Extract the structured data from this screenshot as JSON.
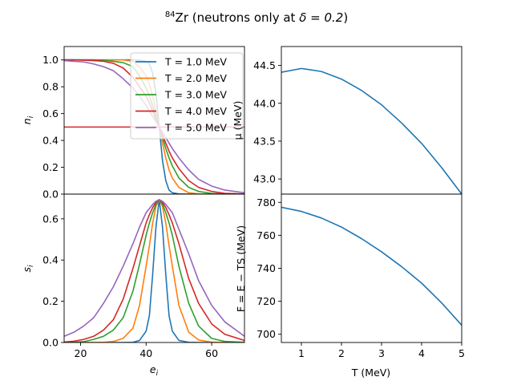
{
  "title_prefix": "84",
  "title_body": "Zr (neutrons only at ",
  "title_math": "δ = 0.2",
  "title_suffix": ")",
  "chart_data": [
    {
      "type": "line",
      "panel": "occupation",
      "xlabel": "",
      "ylabel": "n_i",
      "xlim": [
        15,
        70
      ],
      "ylim": [
        0,
        1.1
      ],
      "yticks": [
        "0.0",
        "0.2",
        "0.4",
        "0.6",
        "0.8",
        "1.0"
      ],
      "ytick_values": [
        0,
        0.2,
        0.4,
        0.6,
        0.8,
        1.0
      ],
      "legend_position": "upper right",
      "x": [
        15,
        18,
        21,
        24,
        27,
        30,
        33,
        36,
        38,
        40,
        41,
        42,
        43,
        44,
        45,
        46,
        47,
        48,
        50,
        53,
        56,
        60,
        64,
        70
      ],
      "series": [
        {
          "name": "T = 1.0 MeV",
          "color": "#1f77b4",
          "values": [
            1.0,
            1.0,
            1.0,
            1.0,
            1.0,
            1.0,
            1.0,
            1.0,
            0.998,
            0.99,
            0.97,
            0.9,
            0.75,
            0.5,
            0.25,
            0.1,
            0.03,
            0.01,
            0.001,
            0,
            0,
            0,
            0,
            0
          ]
        },
        {
          "name": "T = 2.0 MeV",
          "color": "#ff7f0e",
          "values": [
            1.0,
            1.0,
            1.0,
            1.0,
            1.0,
            1.0,
            1.0,
            0.99,
            0.95,
            0.88,
            0.82,
            0.73,
            0.62,
            0.5,
            0.38,
            0.27,
            0.18,
            0.12,
            0.05,
            0.01,
            0.002,
            0,
            0,
            0
          ]
        },
        {
          "name": "T = 3.0 MeV",
          "color": "#2ca02c",
          "values": [
            1.0,
            1.0,
            1.0,
            1.0,
            0.998,
            0.99,
            0.98,
            0.95,
            0.88,
            0.79,
            0.73,
            0.66,
            0.58,
            0.5,
            0.42,
            0.34,
            0.27,
            0.21,
            0.12,
            0.05,
            0.02,
            0.005,
            0.001,
            0
          ]
        },
        {
          "name": "T = 4.0 MeV",
          "color": "#d62728",
          "values": [
            1.0,
            1.0,
            0.998,
            0.995,
            0.99,
            0.975,
            0.94,
            0.87,
            0.8,
            0.73,
            0.68,
            0.62,
            0.56,
            0.5,
            0.44,
            0.38,
            0.32,
            0.27,
            0.19,
            0.1,
            0.05,
            0.02,
            0.006,
            0.001
          ]
        },
        {
          "name": "T = 4.0 MeV",
          "color": "#d62728",
          "flat": 0.5,
          "values": [
            0.5,
            0.5,
            0.5,
            0.5,
            0.5,
            0.5,
            0.5,
            0.5,
            0.5,
            0.5,
            0.5,
            0.5,
            0.5,
            0.5,
            0.5,
            0.5,
            0.5,
            0.5,
            0.5,
            0.5,
            0.5,
            0.5,
            0.5,
            0.5
          ]
        },
        {
          "name": "T = 5.0 MeV",
          "color": "#9467bd",
          "values": [
            0.995,
            0.99,
            0.985,
            0.97,
            0.95,
            0.92,
            0.86,
            0.79,
            0.73,
            0.66,
            0.62,
            0.58,
            0.54,
            0.5,
            0.46,
            0.42,
            0.38,
            0.34,
            0.27,
            0.18,
            0.11,
            0.06,
            0.03,
            0.01
          ]
        }
      ]
    },
    {
      "type": "line",
      "panel": "entropy",
      "xlabel": "e_i",
      "ylabel": "s_i",
      "xlim": [
        15,
        70
      ],
      "ylim": [
        0,
        0.72
      ],
      "xticks": [
        "20",
        "40",
        "60"
      ],
      "xtick_values": [
        20,
        40,
        60
      ],
      "yticks": [
        "0.0",
        "0.2",
        "0.4",
        "0.6"
      ],
      "ytick_values": [
        0,
        0.2,
        0.4,
        0.6
      ],
      "x": [
        15,
        18,
        21,
        24,
        27,
        30,
        33,
        36,
        38,
        40,
        41,
        42,
        43,
        44,
        45,
        46,
        47,
        48,
        50,
        53,
        56,
        60,
        64,
        70
      ],
      "series": [
        {
          "name": "T = 1.0 MeV",
          "color": "#1f77b4",
          "values": [
            0,
            0,
            0,
            0,
            0,
            0,
            0,
            0.001,
            0.01,
            0.055,
            0.13,
            0.33,
            0.56,
            0.693,
            0.56,
            0.33,
            0.13,
            0.055,
            0.01,
            0.001,
            0,
            0,
            0,
            0
          ]
        },
        {
          "name": "T = 2.0 MeV",
          "color": "#ff7f0e",
          "values": [
            0,
            0,
            0,
            0,
            0.001,
            0.005,
            0.02,
            0.07,
            0.18,
            0.37,
            0.47,
            0.58,
            0.66,
            0.693,
            0.66,
            0.58,
            0.47,
            0.37,
            0.18,
            0.05,
            0.012,
            0.002,
            0,
            0
          ]
        },
        {
          "name": "T = 3.0 MeV",
          "color": "#2ca02c",
          "values": [
            0,
            0.001,
            0.004,
            0.015,
            0.03,
            0.06,
            0.12,
            0.25,
            0.38,
            0.52,
            0.58,
            0.63,
            0.67,
            0.693,
            0.67,
            0.63,
            0.58,
            0.52,
            0.37,
            0.19,
            0.08,
            0.02,
            0.005,
            0.001
          ]
        },
        {
          "name": "T = 4.0 MeV",
          "color": "#d62728",
          "values": [
            0.002,
            0.006,
            0.015,
            0.03,
            0.06,
            0.11,
            0.21,
            0.36,
            0.47,
            0.58,
            0.62,
            0.655,
            0.68,
            0.693,
            0.68,
            0.655,
            0.62,
            0.58,
            0.48,
            0.31,
            0.19,
            0.09,
            0.04,
            0.01
          ]
        },
        {
          "name": "T = 5.0 MeV",
          "color": "#9467bd",
          "values": [
            0.03,
            0.05,
            0.08,
            0.12,
            0.19,
            0.27,
            0.37,
            0.48,
            0.56,
            0.63,
            0.65,
            0.67,
            0.685,
            0.693,
            0.685,
            0.67,
            0.65,
            0.63,
            0.55,
            0.43,
            0.3,
            0.18,
            0.1,
            0.03
          ]
        }
      ]
    },
    {
      "type": "line",
      "panel": "chemical-potential",
      "xlabel": "",
      "ylabel": "μ (MeV)",
      "xlim": [
        0.5,
        5
      ],
      "ylim": [
        42.8,
        44.75
      ],
      "yticks": [
        "43.0",
        "43.5",
        "44.0",
        "44.5"
      ],
      "ytick_values": [
        43.0,
        43.5,
        44.0,
        44.5
      ],
      "series": [
        {
          "name": "",
          "color": "#1f77b4",
          "x": [
            0.5,
            1.0,
            1.5,
            2.0,
            2.5,
            3.0,
            3.5,
            4.0,
            4.5,
            5.0
          ],
          "values": [
            44.41,
            44.46,
            44.42,
            44.32,
            44.17,
            43.98,
            43.74,
            43.47,
            43.15,
            42.8
          ]
        }
      ]
    },
    {
      "type": "line",
      "panel": "free-energy",
      "xlabel": "T (MeV)",
      "ylabel": "F = E − TS (MeV)",
      "xlim": [
        0.5,
        5
      ],
      "ylim": [
        695,
        785
      ],
      "xticks": [
        "1",
        "2",
        "3",
        "4",
        "5"
      ],
      "xtick_values": [
        1,
        2,
        3,
        4,
        5
      ],
      "yticks": [
        "700",
        "720",
        "740",
        "760",
        "780"
      ],
      "ytick_values": [
        700,
        720,
        740,
        760,
        780
      ],
      "series": [
        {
          "name": "",
          "color": "#1f77b4",
          "x": [
            0.5,
            1.0,
            1.5,
            2.0,
            2.5,
            3.0,
            3.5,
            4.0,
            4.5,
            5.0
          ],
          "values": [
            777.0,
            774.5,
            770.5,
            765.0,
            758.0,
            750.0,
            741.0,
            731.0,
            719.0,
            705.5
          ]
        }
      ]
    }
  ]
}
